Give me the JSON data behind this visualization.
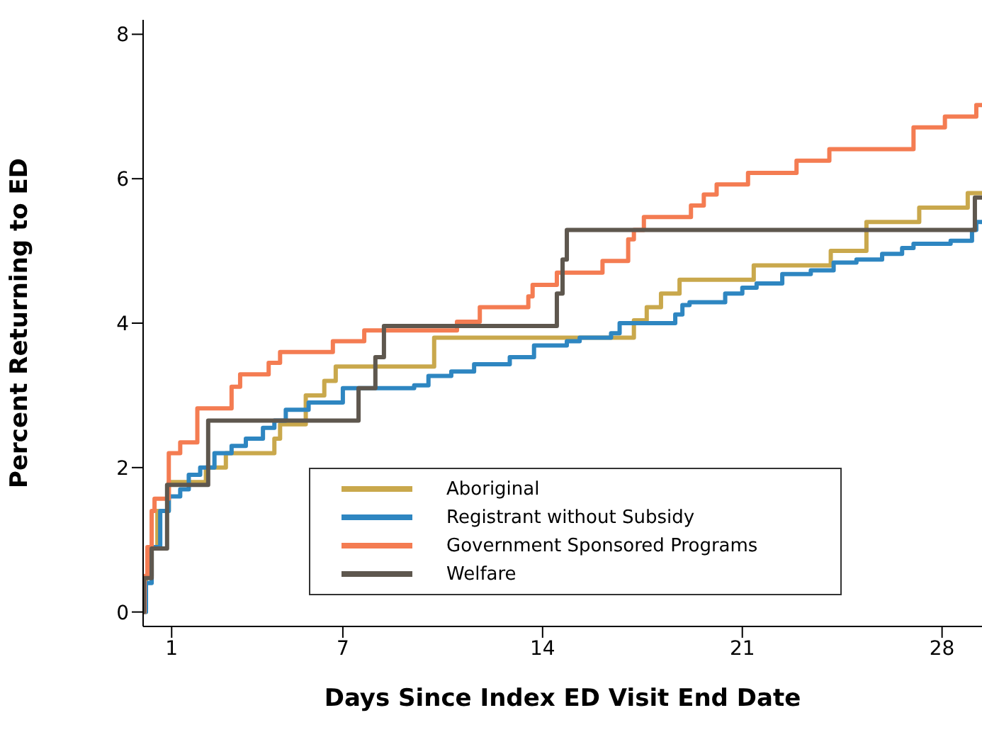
{
  "chart_data": {
    "type": "step",
    "xlabel": "Days Since Index ED Visit End Date",
    "ylabel": "Percent Returning to ED",
    "xlim": [
      0,
      29.4
    ],
    "xticks": [
      1,
      7,
      14,
      21,
      28
    ],
    "ylim": [
      -0.2,
      8.2
    ],
    "yticks": [
      0,
      2,
      4,
      6,
      8
    ],
    "grid": false,
    "legend": "bottom",
    "marker": "none",
    "line_style": "solid",
    "series": [
      {
        "name": "Aboriginal",
        "color": "#c9a84c",
        "x": [
          0,
          0.1,
          0.3,
          0.5,
          0.9,
          2.2,
          2.9,
          4.6,
          4.8,
          5.7,
          6.35,
          6.75,
          10.2,
          17.2,
          17.65,
          18.15,
          18.8,
          21.4,
          24.1,
          25.35,
          27.2,
          28.9,
          29.4
        ],
        "values": [
          0,
          0.5,
          0.9,
          1.4,
          1.8,
          2.0,
          2.2,
          2.4,
          2.6,
          3.0,
          3.2,
          3.4,
          3.8,
          4.04,
          4.22,
          4.41,
          4.6,
          4.8,
          5.0,
          5.4,
          5.6,
          5.8,
          5.8
        ]
      },
      {
        "name": "Registrant without Subsidy",
        "color": "#2e86c1",
        "x": [
          0,
          0.1,
          0.3,
          0.6,
          0.9,
          1.3,
          1.6,
          2.0,
          2.5,
          3.1,
          3.6,
          4.2,
          4.6,
          5.0,
          5.8,
          7.0,
          9.5,
          10.0,
          10.8,
          11.6,
          12.85,
          13.7,
          14.85,
          15.3,
          16.4,
          16.7,
          18.65,
          18.9,
          19.15,
          20.4,
          21.0,
          21.5,
          22.4,
          23.4,
          24.2,
          25.0,
          25.9,
          26.6,
          27.0,
          28.3,
          29.05,
          29.2,
          29.4
        ],
        "values": [
          0,
          0.4,
          0.9,
          1.4,
          1.6,
          1.7,
          1.9,
          2.0,
          2.2,
          2.3,
          2.4,
          2.55,
          2.65,
          2.8,
          2.9,
          3.1,
          3.14,
          3.27,
          3.33,
          3.43,
          3.53,
          3.69,
          3.75,
          3.8,
          3.86,
          4.0,
          4.12,
          4.25,
          4.29,
          4.41,
          4.49,
          4.55,
          4.68,
          4.73,
          4.84,
          4.88,
          4.96,
          5.04,
          5.1,
          5.14,
          5.29,
          5.4,
          5.4
        ]
      },
      {
        "name": "Government Sponsored Programs",
        "color": "#f47c52",
        "x": [
          0,
          0.05,
          0.15,
          0.3,
          0.4,
          0.9,
          1.3,
          1.9,
          3.1,
          3.4,
          4.4,
          4.8,
          6.65,
          7.75,
          11.0,
          11.8,
          13.5,
          13.65,
          14.5,
          16.1,
          17.0,
          17.2,
          17.55,
          19.2,
          19.65,
          20.1,
          21.2,
          22.9,
          24.05,
          27.0,
          28.1,
          29.2,
          29.4
        ],
        "values": [
          0,
          0.5,
          0.9,
          1.4,
          1.57,
          2.2,
          2.35,
          2.82,
          3.12,
          3.29,
          3.45,
          3.6,
          3.75,
          3.9,
          4.02,
          4.22,
          4.37,
          4.53,
          4.7,
          4.86,
          5.16,
          5.29,
          5.47,
          5.63,
          5.78,
          5.92,
          6.08,
          6.25,
          6.41,
          6.71,
          6.86,
          7.02,
          7.02
        ]
      },
      {
        "name": "Welfare",
        "color": "#5e574e",
        "x": [
          0,
          0.03,
          0.3,
          0.84,
          2.28,
          7.55,
          8.14,
          8.44,
          14.5,
          14.7,
          14.85,
          29.15,
          29.4
        ],
        "values": [
          0,
          0.47,
          0.88,
          1.76,
          2.65,
          3.1,
          3.53,
          3.96,
          4.41,
          4.88,
          5.29,
          5.74,
          5.74
        ]
      }
    ]
  }
}
